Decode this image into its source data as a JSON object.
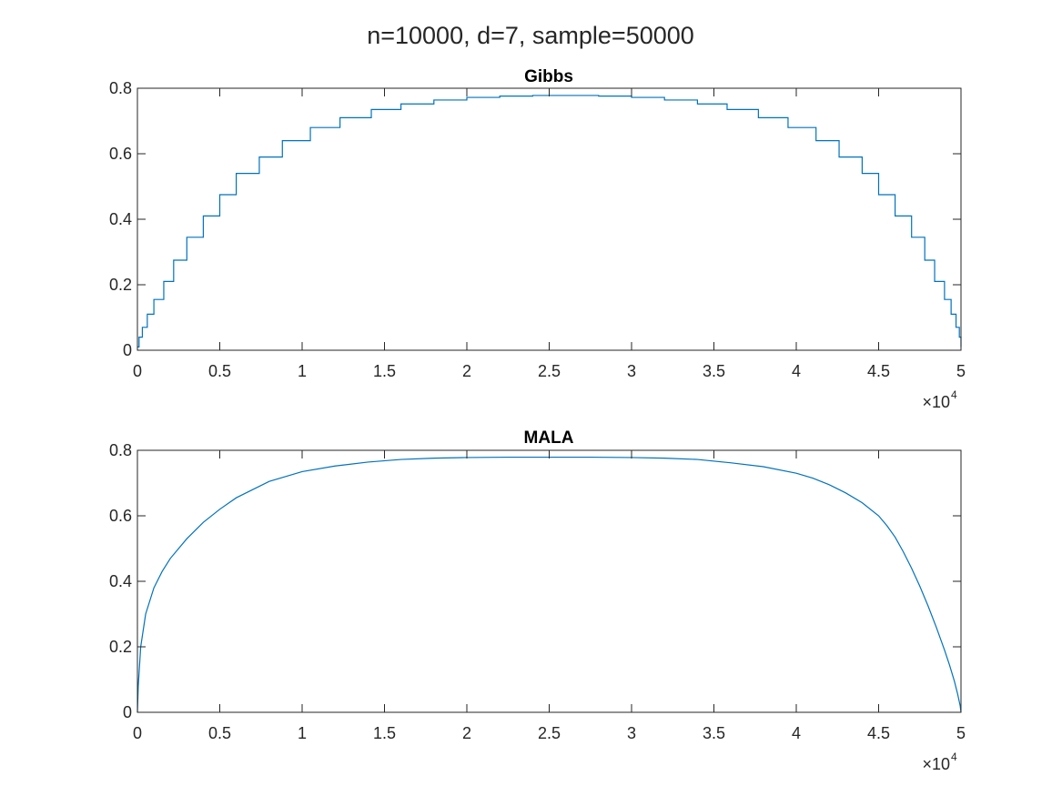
{
  "figure": {
    "suptitle": "n=10000, d=7, sample=50000",
    "line_color": "#0072BD"
  },
  "chart_data": [
    {
      "type": "line",
      "title": "Gibbs",
      "style": "step",
      "xlabel": "",
      "ylabel": "",
      "xlim": [
        0,
        50000
      ],
      "ylim": [
        0,
        0.8
      ],
      "xticks": [
        0,
        5000,
        10000,
        15000,
        20000,
        25000,
        30000,
        35000,
        40000,
        45000,
        50000
      ],
      "xtick_labels": [
        "0",
        "0.5",
        "1",
        "1.5",
        "2",
        "2.5",
        "3",
        "3.5",
        "4",
        "4.5",
        "5"
      ],
      "yticks": [
        0,
        0.2,
        0.4,
        0.6,
        0.8
      ],
      "ytick_labels": [
        "0",
        "0.2",
        "0.4",
        "0.6",
        "0.8"
      ],
      "x_exponent": {
        "base": "×10",
        "power": "4"
      },
      "grid": false,
      "x": [
        0,
        100,
        300,
        600,
        1000,
        1600,
        2200,
        3000,
        4000,
        5000,
        6000,
        7400,
        8800,
        10500,
        12300,
        14200,
        16000,
        18000,
        20000,
        22000,
        24000,
        26000,
        28000,
        30000,
        32000,
        34000,
        35800,
        37700,
        39500,
        41200,
        42600,
        44000,
        45000,
        46000,
        47000,
        47800,
        48400,
        49000,
        49400,
        49700,
        49900,
        50000
      ],
      "y": [
        0.01,
        0.04,
        0.07,
        0.11,
        0.155,
        0.21,
        0.275,
        0.345,
        0.41,
        0.475,
        0.54,
        0.59,
        0.64,
        0.68,
        0.71,
        0.735,
        0.752,
        0.764,
        0.772,
        0.776,
        0.778,
        0.778,
        0.776,
        0.772,
        0.764,
        0.752,
        0.735,
        0.71,
        0.68,
        0.64,
        0.59,
        0.54,
        0.475,
        0.41,
        0.345,
        0.275,
        0.21,
        0.155,
        0.11,
        0.07,
        0.04,
        0.01
      ]
    },
    {
      "type": "line",
      "title": "MALA",
      "style": "line",
      "xlabel": "",
      "ylabel": "",
      "xlim": [
        0,
        50000
      ],
      "ylim": [
        0,
        0.8
      ],
      "xticks": [
        0,
        5000,
        10000,
        15000,
        20000,
        25000,
        30000,
        35000,
        40000,
        45000,
        50000
      ],
      "xtick_labels": [
        "0",
        "0.5",
        "1",
        "1.5",
        "2",
        "2.5",
        "3",
        "3.5",
        "4",
        "4.5",
        "5"
      ],
      "yticks": [
        0,
        0.2,
        0.4,
        0.6,
        0.8
      ],
      "ytick_labels": [
        "0",
        "0.2",
        "0.4",
        "0.6",
        "0.8"
      ],
      "x_exponent": {
        "base": "×10",
        "power": "4"
      },
      "grid": false,
      "x": [
        0,
        50,
        200,
        500,
        1000,
        1500,
        2000,
        3000,
        4000,
        5000,
        6000,
        7000,
        8000,
        9000,
        10000,
        12000,
        14000,
        16000,
        18000,
        20000,
        22500,
        25000,
        27500,
        30000,
        32000,
        34000,
        36000,
        38000,
        40000,
        41000,
        42000,
        43000,
        44000,
        45000,
        45500,
        46000,
        46500,
        47000,
        47500,
        48000,
        48500,
        49000,
        49300,
        49600,
        49800,
        49950,
        50000
      ],
      "y": [
        0,
        0.08,
        0.2,
        0.3,
        0.38,
        0.43,
        0.47,
        0.53,
        0.58,
        0.62,
        0.655,
        0.68,
        0.705,
        0.72,
        0.735,
        0.752,
        0.764,
        0.772,
        0.776,
        0.778,
        0.779,
        0.779,
        0.779,
        0.778,
        0.776,
        0.772,
        0.762,
        0.75,
        0.73,
        0.715,
        0.695,
        0.67,
        0.64,
        0.6,
        0.57,
        0.535,
        0.49,
        0.44,
        0.385,
        0.325,
        0.26,
        0.19,
        0.145,
        0.095,
        0.055,
        0.02,
        0
      ]
    }
  ]
}
